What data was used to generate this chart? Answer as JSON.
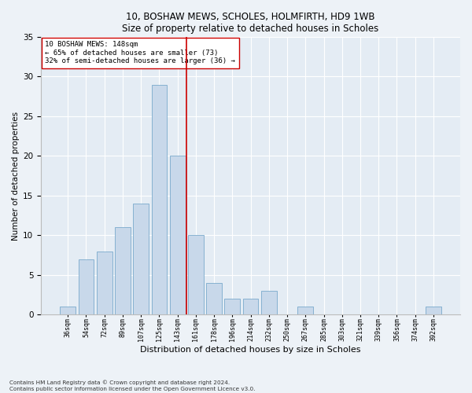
{
  "title1": "10, BOSHAW MEWS, SCHOLES, HOLMFIRTH, HD9 1WB",
  "title2": "Size of property relative to detached houses in Scholes",
  "xlabel": "Distribution of detached houses by size in Scholes",
  "ylabel": "Number of detached properties",
  "bar_labels": [
    "36sqm",
    "54sqm",
    "72sqm",
    "89sqm",
    "107sqm",
    "125sqm",
    "143sqm",
    "161sqm",
    "178sqm",
    "196sqm",
    "214sqm",
    "232sqm",
    "250sqm",
    "267sqm",
    "285sqm",
    "303sqm",
    "321sqm",
    "339sqm",
    "356sqm",
    "374sqm",
    "392sqm"
  ],
  "bar_values": [
    1,
    7,
    8,
    11,
    14,
    29,
    20,
    10,
    4,
    2,
    2,
    3,
    0,
    1,
    0,
    0,
    0,
    0,
    0,
    0,
    1
  ],
  "bar_color": "#c8d8ea",
  "bar_edgecolor": "#7aaacc",
  "vline_x": 6.5,
  "vline_color": "#cc0000",
  "annotation_text": "10 BOSHAW MEWS: 148sqm\n← 65% of detached houses are smaller (73)\n32% of semi-detached houses are larger (36) →",
  "annotation_box_edgecolor": "#cc0000",
  "annotation_box_facecolor": "#ffffff",
  "ylim": [
    0,
    35
  ],
  "yticks": [
    0,
    5,
    10,
    15,
    20,
    25,
    30,
    35
  ],
  "footer1": "Contains HM Land Registry data © Crown copyright and database right 2024.",
  "footer2": "Contains public sector information licensed under the Open Government Licence v3.0.",
  "bg_color": "#edf2f7",
  "plot_bg_color": "#e4ecf4"
}
